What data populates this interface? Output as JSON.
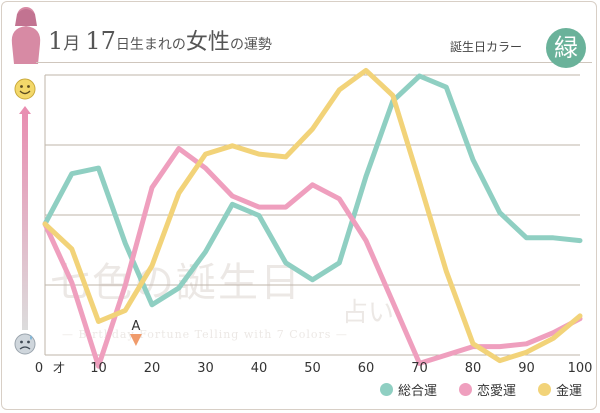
{
  "header": {
    "month_num": "1",
    "month_unit": "月",
    "day_num": "17",
    "day_unit": "日生まれの",
    "subject": "女性",
    "suffix": "の運勢",
    "birthday_color_label": "誕生日カラー",
    "birthday_color_name": "緑",
    "badge_color": "#6ab29a"
  },
  "watermark": {
    "main": "七色の誕生日",
    "uranai": "占い",
    "sub": "— Birthday Fortune Telling with 7 Colors —"
  },
  "icons": {
    "top": "smiley-face-icon",
    "bottom": "sad-face-icon",
    "silhouette": "woman-silhouette-icon"
  },
  "chart_data": {
    "type": "line",
    "x_unit_label": "才",
    "x_ticks": [
      "0",
      "10",
      "20",
      "30",
      "40",
      "50",
      "60",
      "70",
      "80",
      "90",
      "100"
    ],
    "xlim": [
      0,
      100
    ],
    "ylim": [
      0,
      100
    ],
    "grid": true,
    "marker": {
      "label": "A",
      "x": 17
    },
    "x": [
      0,
      5,
      10,
      15,
      20,
      25,
      30,
      35,
      40,
      45,
      50,
      55,
      60,
      65,
      70,
      75,
      80,
      85,
      90,
      95,
      100
    ],
    "series": [
      {
        "name": "総合運",
        "color": "#8fcfc2",
        "values": [
          47,
          65,
          67,
          40,
          18,
          24,
          37,
          54,
          50,
          33,
          27,
          33,
          64,
          91,
          100,
          96,
          70,
          51,
          42,
          42,
          41
        ]
      },
      {
        "name": "恋愛運",
        "color": "#ef9fbe",
        "values": [
          47,
          26,
          -4,
          25,
          60,
          74,
          67,
          57,
          53,
          53,
          61,
          56,
          41,
          19,
          -3,
          0,
          3,
          3,
          4,
          8,
          13
        ]
      },
      {
        "name": "金運",
        "color": "#f2d379",
        "values": [
          47,
          38,
          12,
          16,
          32,
          58,
          72,
          75,
          72,
          71,
          81,
          95,
          102,
          93,
          62,
          30,
          4,
          -2,
          1,
          6,
          14
        ]
      }
    ]
  }
}
